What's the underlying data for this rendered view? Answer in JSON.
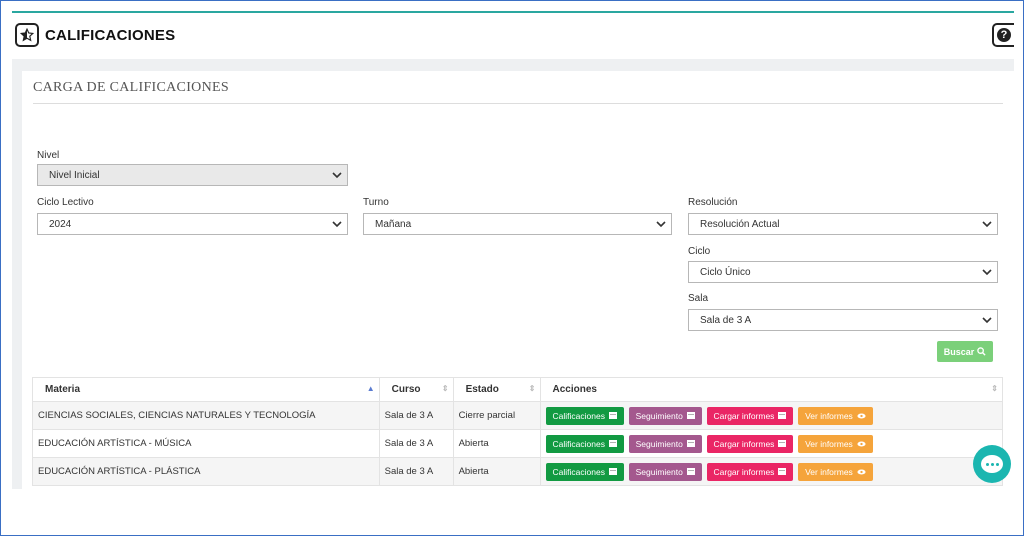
{
  "header": {
    "title": "CALIFICACIONES",
    "left_icon": "star-half-icon",
    "help_icon": "question-circle-icon"
  },
  "section": {
    "title": "CARGA DE CALIFICACIONES"
  },
  "form": {
    "nivel": {
      "label": "Nivel",
      "value": "Nivel Inicial",
      "disabled": true
    },
    "ciclo_lectivo": {
      "label": "Ciclo Lectivo",
      "value": "2024"
    },
    "turno": {
      "label": "Turno",
      "value": "Mañana"
    },
    "resolucion": {
      "label": "Resolución",
      "value": "Resolución Actual"
    },
    "ciclo": {
      "label": "Ciclo",
      "value": "Ciclo Único"
    },
    "sala": {
      "label": "Sala",
      "value": "Sala de 3 A"
    },
    "search_button": {
      "label": "Buscar",
      "icon": "search-icon",
      "color": "#7bd07a"
    }
  },
  "table": {
    "headers": [
      "Materia",
      "Curso",
      "Estado",
      "Acciones"
    ],
    "action_labels": {
      "calificaciones": "Calificaciones",
      "seguimiento": "Seguimiento",
      "cargar_informes": "Cargar informes",
      "ver_informes": "Ver informes"
    },
    "action_colors": {
      "calificaciones": "#129a42",
      "seguimiento": "#a4588e",
      "cargar_informes": "#ea2665",
      "ver_informes": "#f5a43b"
    },
    "rows": [
      {
        "materia": "CIENCIAS SOCIALES, CIENCIAS NATURALES Y TECNOLOGÍA",
        "curso": "Sala de 3 A",
        "estado": "Cierre parcial"
      },
      {
        "materia": "EDUCACIÓN ARTÍSTICA - MÚSICA",
        "curso": "Sala de 3 A",
        "estado": "Abierta"
      },
      {
        "materia": "EDUCACIÓN ARTÍSTICA - PLÁSTICA",
        "curso": "Sala de 3 A",
        "estado": "Abierta"
      }
    ]
  },
  "colors": {
    "accent_line": "#2aa7a0",
    "chat_bubble": "#1bb6b0"
  }
}
